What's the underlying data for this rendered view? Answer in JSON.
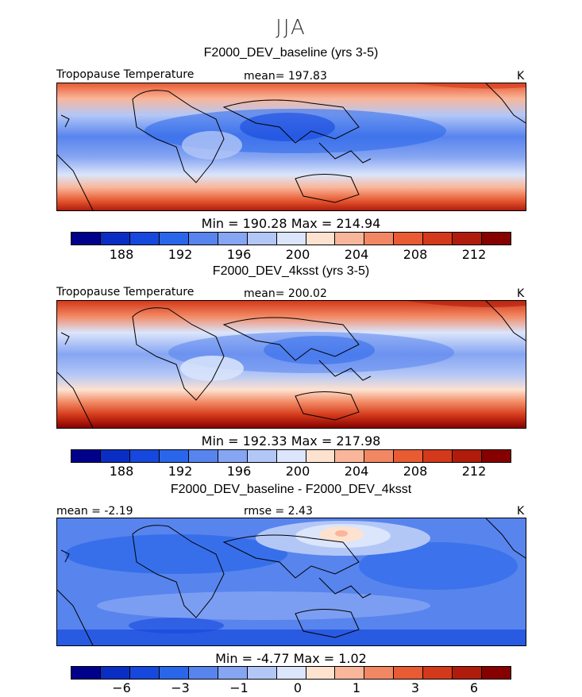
{
  "season": "JJA",
  "colorbar": {
    "colors": [
      "#00008b",
      "#0a2ec4",
      "#1648dd",
      "#2a66ea",
      "#5884ee",
      "#86a5f2",
      "#b3c7f7",
      "#dbe5fb",
      "#fde2d0",
      "#f9b69a",
      "#f28863",
      "#e85b33",
      "#d3391a",
      "#b01c0c",
      "#860000"
    ]
  },
  "chart_data": [
    {
      "type": "heatmap",
      "title": "F2000_DEV_baseline (yrs 3-5)",
      "variable_label": "Tropopause Temperature",
      "stat_text": "mean= 197.83",
      "units": "K",
      "minmax_text": "Min = 190.28 Max = 214.94",
      "min": 190.28,
      "max": 214.94,
      "mean": 197.83,
      "colorbar_ticks": [
        "188",
        "192",
        "196",
        "200",
        "204",
        "208",
        "212"
      ],
      "levels": [
        186,
        188,
        190,
        192,
        194,
        196,
        198,
        200,
        202,
        204,
        206,
        208,
        210,
        212,
        214
      ]
    },
    {
      "type": "heatmap",
      "title": "F2000_DEV_4ksst (yrs 3-5)",
      "variable_label": "Tropopause Temperature",
      "stat_text": "mean= 200.02",
      "units": "K",
      "minmax_text": "Min = 192.33 Max = 217.98",
      "min": 192.33,
      "max": 217.98,
      "mean": 200.02,
      "colorbar_ticks": [
        "188",
        "192",
        "196",
        "200",
        "204",
        "208",
        "212"
      ],
      "levels": [
        186,
        188,
        190,
        192,
        194,
        196,
        198,
        200,
        202,
        204,
        206,
        208,
        210,
        212,
        214
      ]
    },
    {
      "type": "heatmap",
      "title": "F2000_DEV_baseline - F2000_DEV_4ksst",
      "stat_left": "mean = -2.19",
      "stat_mid": "rmse = 2.43",
      "units": "K",
      "minmax_text": "Min = -4.77 Max = 1.02",
      "min": -4.77,
      "max": 1.02,
      "mean": -2.19,
      "rmse": 2.43,
      "colorbar_ticks": [
        "−6",
        "−3",
        "−1",
        "0",
        "1",
        "3",
        "6"
      ]
    }
  ]
}
